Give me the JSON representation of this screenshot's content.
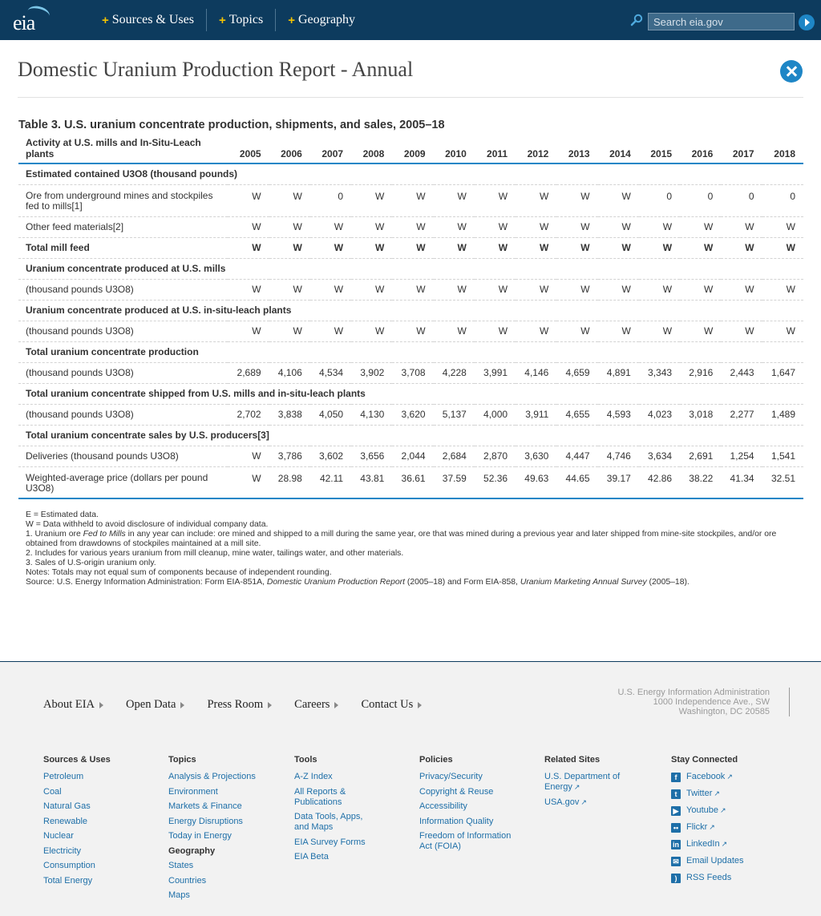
{
  "header": {
    "logo_text": "eia",
    "nav": [
      {
        "label": "Sources & Uses"
      },
      {
        "label": "Topics"
      },
      {
        "label": "Geography"
      }
    ],
    "search_placeholder": "Search eia.gov"
  },
  "page": {
    "title": "Domestic Uranium Production Report - Annual"
  },
  "table": {
    "caption": "Table 3. U.S. uranium concentrate production, shipments, and sales, 2005–18",
    "header_label": "Activity at U.S. mills and In-Situ-Leach plants",
    "years": [
      "2005",
      "2006",
      "2007",
      "2008",
      "2009",
      "2010",
      "2011",
      "2012",
      "2013",
      "2014",
      "2015",
      "2016",
      "2017",
      "2018"
    ],
    "rows": [
      {
        "type": "section",
        "label": "Estimated contained U3O8 (thousand pounds)"
      },
      {
        "type": "data",
        "tall": true,
        "label": "Ore from underground mines and stockpiles fed to mills[1]",
        "values": [
          "W",
          "W",
          "0",
          "W",
          "W",
          "W",
          "W",
          "W",
          "W",
          "W",
          "0",
          "0",
          "0",
          "0"
        ]
      },
      {
        "type": "data",
        "label": "Other feed materials[2]",
        "values": [
          "W",
          "W",
          "W",
          "W",
          "W",
          "W",
          "W",
          "W",
          "W",
          "W",
          "W",
          "W",
          "W",
          "W"
        ]
      },
      {
        "type": "bold",
        "label": "Total mill feed",
        "values": [
          "W",
          "W",
          "W",
          "W",
          "W",
          "W",
          "W",
          "W",
          "W",
          "W",
          "W",
          "W",
          "W",
          "W"
        ]
      },
      {
        "type": "section",
        "label": "Uranium concentrate produced at U.S. mills"
      },
      {
        "type": "data",
        "label": "(thousand pounds U3O8)",
        "values": [
          "W",
          "W",
          "W",
          "W",
          "W",
          "W",
          "W",
          "W",
          "W",
          "W",
          "W",
          "W",
          "W",
          "W"
        ]
      },
      {
        "type": "section",
        "label": "Uranium concentrate produced at U.S. in-situ-leach plants"
      },
      {
        "type": "data",
        "label": "(thousand pounds U3O8)",
        "values": [
          "W",
          "W",
          "W",
          "W",
          "W",
          "W",
          "W",
          "W",
          "W",
          "W",
          "W",
          "W",
          "W",
          "W"
        ]
      },
      {
        "type": "section",
        "label": "Total uranium concentrate production"
      },
      {
        "type": "data",
        "label": "(thousand pounds U3O8)",
        "values": [
          "2,689",
          "4,106",
          "4,534",
          "3,902",
          "3,708",
          "4,228",
          "3,991",
          "4,146",
          "4,659",
          "4,891",
          "3,343",
          "2,916",
          "2,443",
          "1,647"
        ]
      },
      {
        "type": "section",
        "label": "Total uranium concentrate shipped from U.S. mills and in-situ-leach plants"
      },
      {
        "type": "data",
        "label": "(thousand pounds U3O8)",
        "values": [
          "2,702",
          "3,838",
          "4,050",
          "4,130",
          "3,620",
          "5,137",
          "4,000",
          "3,911",
          "4,655",
          "4,593",
          "4,023",
          "3,018",
          "2,277",
          "1,489"
        ]
      },
      {
        "type": "section",
        "label": "Total uranium concentrate sales by U.S. producers[3]"
      },
      {
        "type": "data",
        "label": "Deliveries (thousand pounds U3O8)",
        "values": [
          "W",
          "3,786",
          "3,602",
          "3,656",
          "2,044",
          "2,684",
          "2,870",
          "3,630",
          "4,447",
          "4,746",
          "3,634",
          "2,691",
          "1,254",
          "1,541"
        ]
      },
      {
        "type": "data",
        "tall": true,
        "last": true,
        "label": "Weighted-average price (dollars per pound U3O8)",
        "values": [
          "W",
          "28.98",
          "42.11",
          "43.81",
          "36.61",
          "37.59",
          "52.36",
          "49.63",
          "44.65",
          "39.17",
          "42.86",
          "38.22",
          "41.34",
          "32.51"
        ]
      }
    ]
  },
  "notes": {
    "estimated": "E = Estimated data.",
    "withheld": "W = Data withheld to avoid disclosure of individual company data.",
    "note1_pre": "1. Uranium ore ",
    "note1_em": "Fed to Mills",
    "note1_post": " in any year can include: ore mined and shipped to a mill during the same year, ore that was mined during a previous year and later shipped from mine-site stockpiles, and/or ore obtained from drawdowns of stockpiles maintained at a mill site.",
    "note2": "2. Includes for various years uranium from mill cleanup, mine water, tailings water, and other materials.",
    "note3": "3. Sales of U.S-origin uranium only.",
    "totals": "Notes: Totals may not equal sum of components because of independent rounding.",
    "source_pre": "Source: U.S. Energy Information Administration: Form EIA-851A, ",
    "source_em1": "Domestic Uranium Production Report",
    "source_mid": " (2005–18) and Form EIA-858, ",
    "source_em2": "Uranium Marketing Annual Survey",
    "source_post": " (2005–18)."
  },
  "footer": {
    "nav": [
      {
        "label": "About EIA"
      },
      {
        "label": "Open Data"
      },
      {
        "label": "Press Room"
      },
      {
        "label": "Careers"
      },
      {
        "label": "Contact Us"
      }
    ],
    "address": {
      "line1": "U.S. Energy Information Administration",
      "line2": "1000 Independence Ave., SW",
      "line3": "Washington, DC 20585"
    },
    "columns": {
      "sources": {
        "title": "Sources & Uses",
        "links": [
          "Petroleum",
          "Coal",
          "Natural Gas",
          "Renewable",
          "Nuclear",
          "Electricity",
          "Consumption",
          "Total Energy"
        ]
      },
      "topics": {
        "title": "Topics",
        "links": [
          "Analysis & Projections",
          "Environment",
          "Markets & Finance",
          "Energy Disruptions",
          "Today in Energy"
        ],
        "subhead": "Geography",
        "sublinks": [
          "States",
          "Countries",
          "Maps"
        ]
      },
      "tools": {
        "title": "Tools",
        "links": [
          "A-Z Index",
          "All Reports & Publications",
          "Data Tools, Apps, and Maps",
          "EIA Survey Forms",
          "EIA Beta"
        ]
      },
      "policies": {
        "title": "Policies",
        "links": [
          "Privacy/Security",
          "Copyright & Reuse",
          "Accessibility",
          "Information Quality",
          "Freedom of Information Act (FOIA)"
        ]
      },
      "related": {
        "title": "Related Sites",
        "links": [
          "U.S. Department of Energy",
          "USA.gov"
        ]
      },
      "social": {
        "title": "Stay Connected",
        "links": [
          {
            "label": "Facebook",
            "icon": "facebook-icon",
            "glyph": "f"
          },
          {
            "label": "Twitter",
            "icon": "twitter-icon",
            "glyph": "t"
          },
          {
            "label": "Youtube",
            "icon": "youtube-icon",
            "glyph": "▶"
          },
          {
            "label": "Flickr",
            "icon": "flickr-icon",
            "glyph": "••"
          },
          {
            "label": "LinkedIn",
            "icon": "linkedin-icon",
            "glyph": "in"
          },
          {
            "label": "Email Updates",
            "icon": "email-icon",
            "glyph": "✉"
          },
          {
            "label": "RSS Feeds",
            "icon": "rss-icon",
            "glyph": ")"
          }
        ]
      }
    }
  }
}
